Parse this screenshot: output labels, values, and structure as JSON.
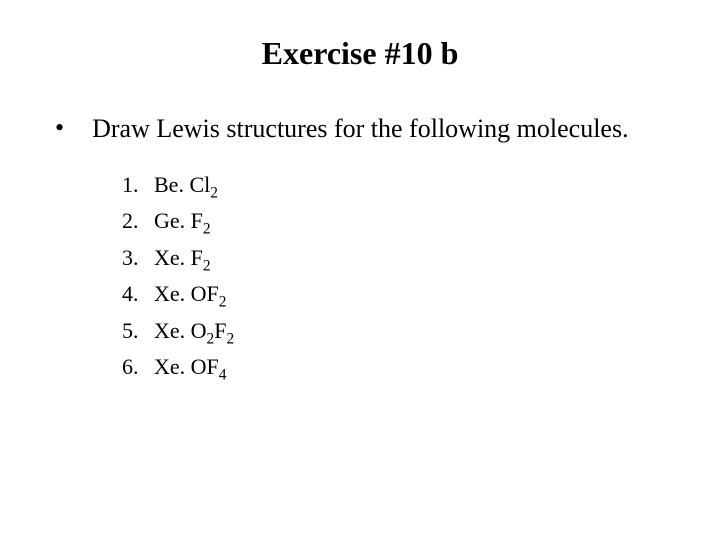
{
  "title": "Exercise #10 b",
  "mainBullet": "•",
  "mainText": "Draw Lewis structures for the following molecules.",
  "items": [
    {
      "num": "1.",
      "formula": [
        {
          "t": "Be. Cl"
        },
        {
          "sub": "2"
        }
      ]
    },
    {
      "num": "2.",
      "formula": [
        {
          "t": "Ge. F"
        },
        {
          "sub": "2"
        }
      ]
    },
    {
      "num": "3.",
      "formula": [
        {
          "t": "Xe. F"
        },
        {
          "sub": "2"
        }
      ]
    },
    {
      "num": "4.",
      "formula": [
        {
          "t": "Xe. OF"
        },
        {
          "sub": "2"
        }
      ]
    },
    {
      "num": "5.",
      "formula": [
        {
          "t": "Xe. O"
        },
        {
          "sub": "2"
        },
        {
          "t": "F"
        },
        {
          "sub": "2"
        }
      ]
    },
    {
      "num": "6.",
      "formula": [
        {
          "t": "Xe. OF"
        },
        {
          "sub": "4"
        }
      ]
    }
  ],
  "colors": {
    "background": "#ffffff",
    "text": "#000000"
  },
  "typography": {
    "title_fontsize": 32,
    "main_fontsize": 26,
    "list_fontsize": 22,
    "font_family": "Times New Roman"
  }
}
